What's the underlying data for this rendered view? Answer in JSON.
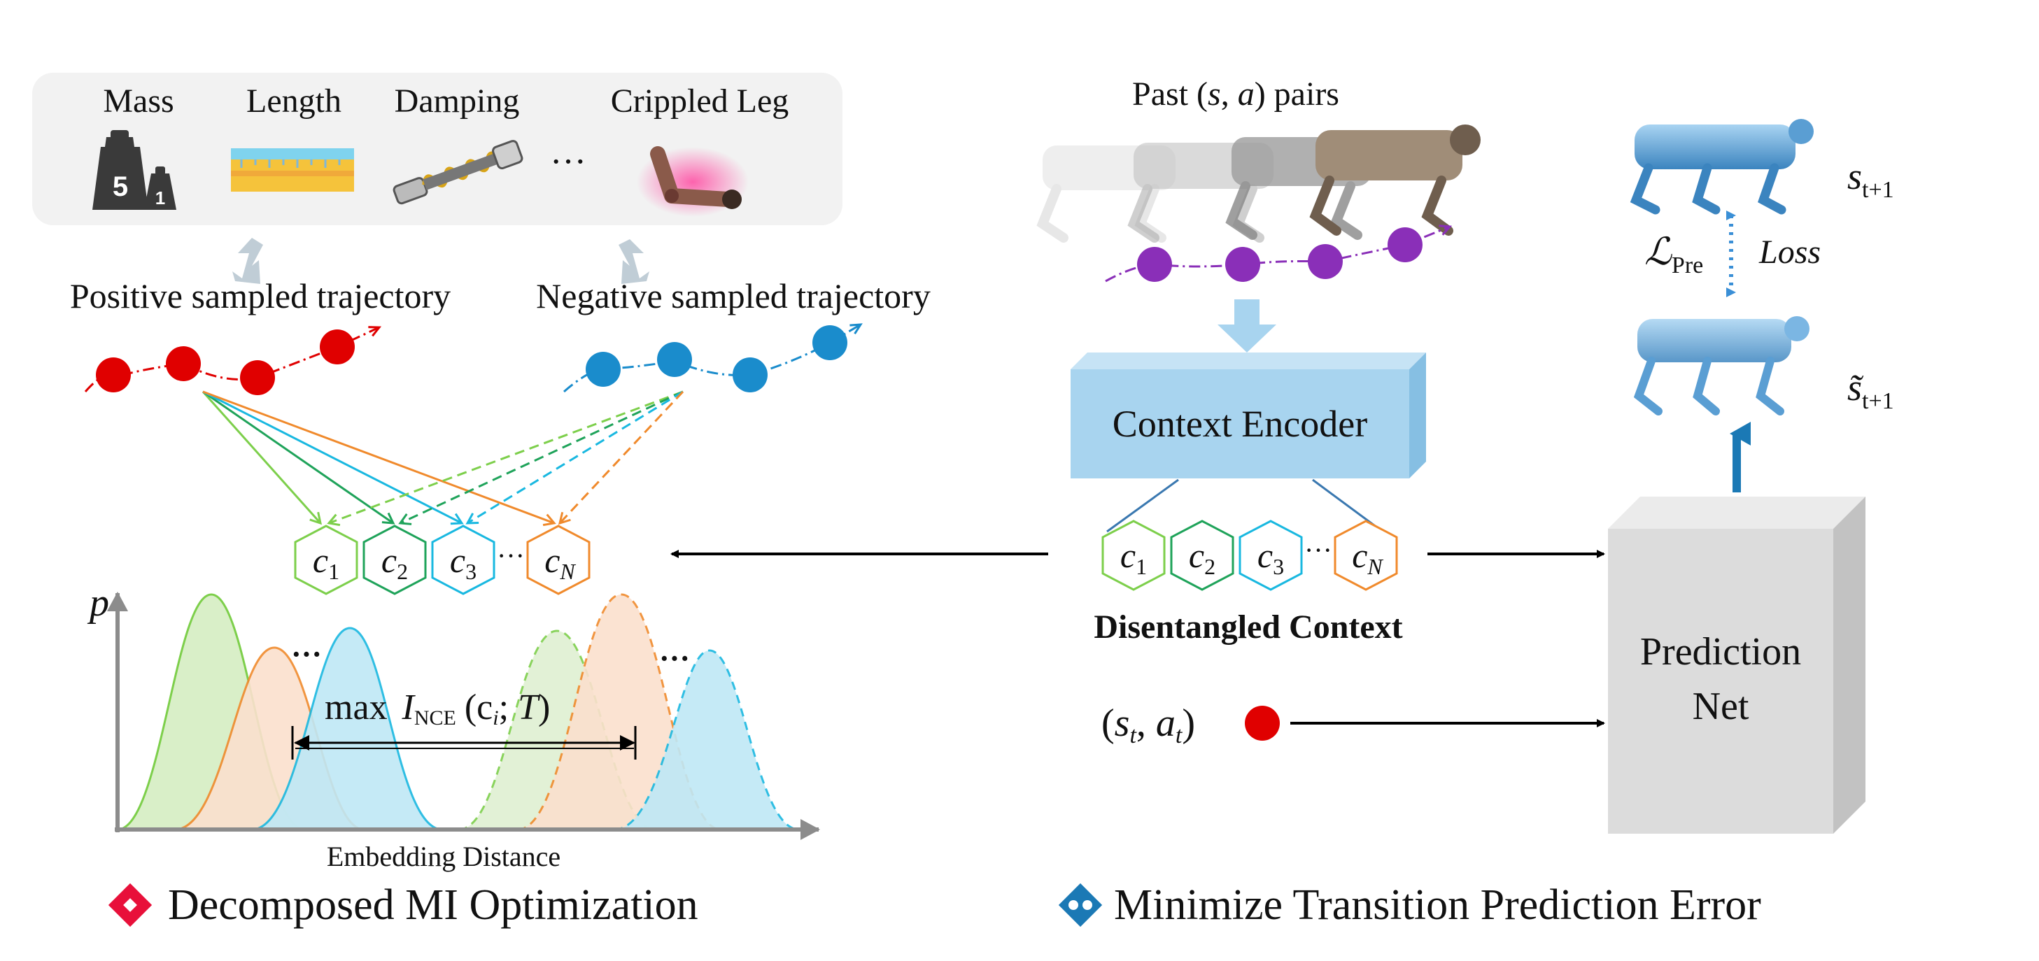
{
  "left_panel": {
    "properties": [
      {
        "label": "Mass",
        "icon": "weights-icon"
      },
      {
        "label": "Length",
        "icon": "ruler-icon"
      },
      {
        "label": "Damping",
        "icon": "spring-damper-icon"
      },
      {
        "label": "Crippled Leg",
        "icon": "crippled-leg-icon"
      }
    ],
    "ellipsis": "···",
    "positive_label": "Positive sampled trajectory",
    "negative_label": "Negative sampled trajectory",
    "contexts": [
      "c1",
      "c2",
      "c3",
      "cN"
    ],
    "context_ellipsis": "···",
    "plot": {
      "y_axis_label": "p",
      "x_axis_label": "Embedding Distance",
      "formula_max": "max",
      "formula_I": "I",
      "formula_sub": "NCE",
      "formula_args": "(c",
      "formula_i": "i",
      "formula_semi": "; ",
      "formula_T": "T",
      "formula_close": ")",
      "dots_left": "···",
      "dots_right": "···"
    },
    "title": "Decomposed MI Optimization"
  },
  "right_panel": {
    "past_label_prefix": "Past (",
    "past_label_s": "s",
    "past_label_comma": ", ",
    "past_label_a": "a",
    "past_label_suffix": ") pairs",
    "encoder_label": "Context Encoder",
    "contexts": [
      "c1",
      "c2",
      "c3",
      "cN"
    ],
    "disentangled_label": "Disentangled Context",
    "state_action_label": "(s",
    "prediction_net_line1": "Prediction",
    "prediction_net_line2": "Net",
    "next_state_label": "s",
    "next_state_sub": "t+1",
    "pred_state_label": "s̃",
    "pred_state_sub": "t+1",
    "loss_symbol": "ℒ",
    "loss_sub": "Pre",
    "loss_word": "Loss",
    "title": "Minimize Transition Prediction Error"
  },
  "colors": {
    "positive": "#e00000",
    "negative": "#1a8ccc",
    "purple": "#8a2fb8",
    "c1": "#7dcf4b",
    "c2": "#1fa35a",
    "c3": "#19b8e0",
    "cN": "#f08a2c",
    "encoder_fill": "#a8d4ef",
    "net_fill": "#dcdcdc",
    "title_left_icon": "#e8103a",
    "title_right_icon": "#1b79b5"
  }
}
